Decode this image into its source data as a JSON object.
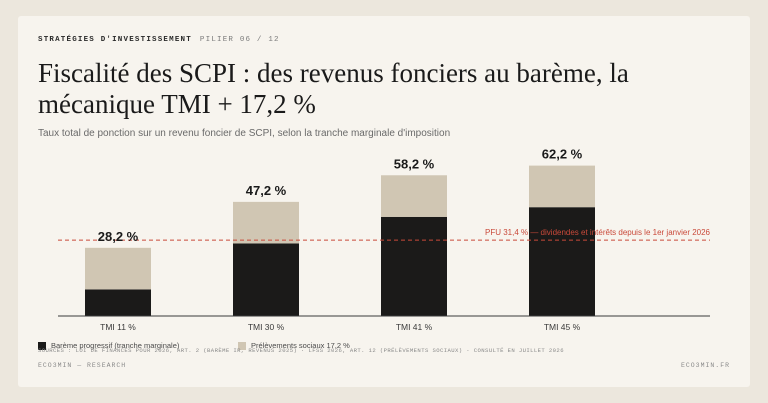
{
  "header": {
    "kicker": "STRATÉGIES D'INVESTISSEMENT",
    "pillar": "PILIER 06 / 12",
    "title": "Fiscalité des SCPI : des revenus fonciers au barème, la mécanique TMI + 17,2 %",
    "subtitle": "Taux total de ponction sur un revenu foncier de SCPI, selon la tranche marginale d'imposition"
  },
  "colors": {
    "bareme": "#1b1a19",
    "prelevements": "#d0c6b3",
    "pfu_line": "#c9493a",
    "axis": "#3a3a3a"
  },
  "chart_data": {
    "type": "bar",
    "stacked": true,
    "categories": [
      "TMI 11 %",
      "TMI 30 %",
      "TMI 41 %",
      "TMI 45 %"
    ],
    "series": [
      {
        "name": "Barème progressif (tranche marginale)",
        "values": [
          11,
          30,
          41,
          45
        ]
      },
      {
        "name": "Prélèvements sociaux 17,2 %",
        "values": [
          17.2,
          17.2,
          17.2,
          17.2
        ]
      }
    ],
    "totals": [
      "28,2 %",
      "47,2 %",
      "58,2 %",
      "62,2 %"
    ],
    "reference_line": {
      "value": 31.4,
      "label": "PFU 31,4 % — dividendes et intérêts depuis le 1er janvier 2026"
    },
    "ylim": [
      0,
      70
    ],
    "legend_position": "bottom-left"
  },
  "legend": {
    "bareme": "Barème progressif (tranche marginale)",
    "prelevements": "Prélèvements sociaux 17,2 %"
  },
  "sources": "SOURCES : LOI DE FINANCES POUR 2026, ART. 2 (BARÈME IR, REVENUS 2025) · LFSS 2026, ART. 12 (PRÉLÈVEMENTS SOCIAUX) · CONSULTÉ EN JUILLET 2026",
  "footer": {
    "left": "ECO3MIN — RESEARCH",
    "right": "ECO3MIN.FR"
  }
}
